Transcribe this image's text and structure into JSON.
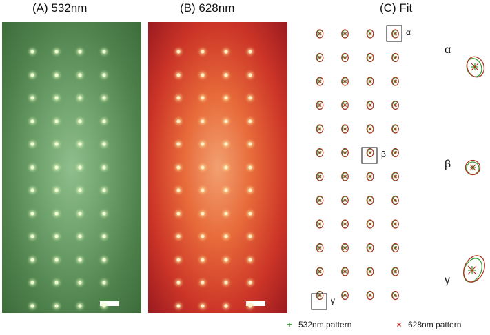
{
  "titles": {
    "a": "(A) 532nm",
    "b": "(B) 628nm",
    "c": "(C) Fit"
  },
  "grid": {
    "rows": 12,
    "cols": 4
  },
  "box_labels": {
    "alpha": "α",
    "beta": "β",
    "gamma": "γ"
  },
  "zoom_labels": {
    "alpha": "α",
    "beta": "β",
    "gamma": "γ"
  },
  "legend": {
    "green": {
      "label": "532nm pattern",
      "marker": "+",
      "color": "#2e9e2e"
    },
    "red": {
      "label": "628nm pattern",
      "marker": "×",
      "color": "#b03020"
    }
  },
  "colors": {
    "green_fit": "#2e9e2e",
    "red_fit": "#b03020",
    "panel_a": "#5f925c",
    "panel_b": "#d94a2e"
  }
}
